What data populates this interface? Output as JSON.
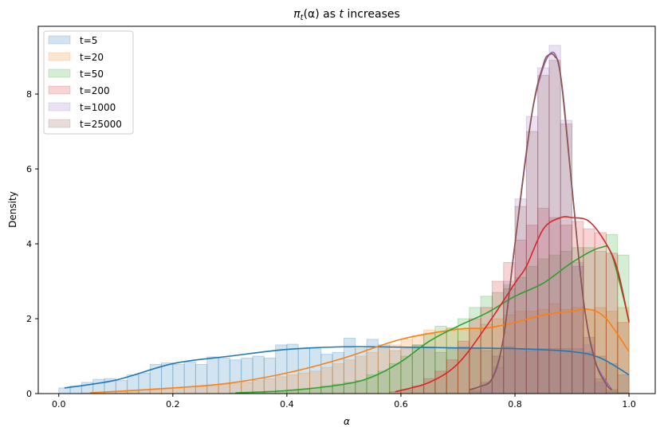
{
  "chart_data": {
    "type": "histogram+kde",
    "title": {
      "pi": "π",
      "sub": "t",
      "mid": "(α) as ",
      "t": "t",
      "end": " increases"
    },
    "xlabel": "α",
    "ylabel": "Density",
    "xlim": [
      -0.036,
      1.046
    ],
    "ylim": [
      0,
      9.81
    ],
    "xticks": [
      "0.0",
      "0.2",
      "0.4",
      "0.6",
      "0.8",
      "1.0"
    ],
    "yticks": [
      "0",
      "2",
      "4",
      "6",
      "8"
    ],
    "grid": false,
    "legend_position": "top-left",
    "bin_width": 0.02,
    "series": [
      {
        "name": "t=5",
        "color": "#1f77b4",
        "hist_start": 0.0,
        "hist": [
          0.15,
          0.2,
          0.3,
          0.38,
          0.4,
          0.35,
          0.5,
          0.55,
          0.78,
          0.82,
          0.78,
          0.85,
          0.78,
          0.98,
          0.95,
          0.9,
          0.95,
          1.0,
          0.95,
          1.3,
          1.32,
          1.2,
          1.2,
          1.05,
          1.1,
          1.48,
          1.2,
          1.45,
          1.3,
          1.15,
          1.2,
          1.3,
          1.25,
          1.1,
          1.2,
          1.25,
          1.2,
          1.15,
          1.2,
          1.25,
          1.2,
          1.15,
          1.2,
          1.2,
          1.2,
          1.2,
          1.1,
          1.0,
          0.8,
          0.5
        ],
        "kde": [
          [
            0.01,
            0.15
          ],
          [
            0.1,
            0.36
          ],
          [
            0.2,
            0.8
          ],
          [
            0.3,
            1.0
          ],
          [
            0.4,
            1.18
          ],
          [
            0.5,
            1.25
          ],
          [
            0.6,
            1.24
          ],
          [
            0.7,
            1.22
          ],
          [
            0.8,
            1.2
          ],
          [
            0.9,
            1.12
          ],
          [
            0.95,
            0.95
          ],
          [
            1.0,
            0.5
          ]
        ]
      },
      {
        "name": "t=20",
        "color": "#ff7f0e",
        "hist_start": 0.04,
        "hist": [
          0.02,
          0.03,
          0.05,
          0.05,
          0.08,
          0.1,
          0.1,
          0.12,
          0.15,
          0.18,
          0.2,
          0.2,
          0.25,
          0.28,
          0.3,
          0.35,
          0.4,
          0.45,
          0.5,
          0.55,
          0.6,
          0.7,
          0.8,
          0.9,
          1.0,
          1.1,
          1.2,
          1.3,
          1.45,
          1.55,
          1.7,
          1.65,
          1.75,
          1.7,
          1.75,
          1.85,
          2.0,
          2.1,
          2.2,
          2.2,
          2.25,
          2.4,
          2.25,
          2.3,
          2.25,
          2.3,
          2.2,
          2.3
        ],
        "kde": [
          [
            0.055,
            0.02
          ],
          [
            0.2,
            0.15
          ],
          [
            0.3,
            0.28
          ],
          [
            0.4,
            0.55
          ],
          [
            0.5,
            0.95
          ],
          [
            0.6,
            1.45
          ],
          [
            0.7,
            1.72
          ],
          [
            0.75,
            1.75
          ],
          [
            0.8,
            1.9
          ],
          [
            0.85,
            2.1
          ],
          [
            0.9,
            2.2
          ],
          [
            0.93,
            2.25
          ],
          [
            0.96,
            2.0
          ],
          [
            1.0,
            1.12
          ]
        ]
      },
      {
        "name": "t=50",
        "color": "#2ca02c",
        "hist_start": 0.3,
        "hist": [
          0.02,
          0.03,
          0.05,
          0.06,
          0.08,
          0.1,
          0.12,
          0.15,
          0.2,
          0.25,
          0.3,
          0.35,
          0.5,
          0.6,
          0.8,
          1.0,
          1.3,
          1.6,
          1.8,
          1.75,
          2.0,
          2.3,
          2.6,
          2.7,
          2.9,
          3.1,
          3.4,
          3.6,
          3.7,
          3.8,
          3.9,
          3.9,
          3.8,
          4.25,
          3.7
        ],
        "kde": [
          [
            0.31,
            0.02
          ],
          [
            0.4,
            0.08
          ],
          [
            0.5,
            0.25
          ],
          [
            0.55,
            0.45
          ],
          [
            0.6,
            0.85
          ],
          [
            0.65,
            1.4
          ],
          [
            0.7,
            1.8
          ],
          [
            0.75,
            2.15
          ],
          [
            0.8,
            2.6
          ],
          [
            0.85,
            2.95
          ],
          [
            0.9,
            3.5
          ],
          [
            0.95,
            3.9
          ],
          [
            0.97,
            3.7
          ],
          [
            1.0,
            1.95
          ]
        ]
      },
      {
        "name": "t=200",
        "color": "#d62728",
        "hist_start": 0.58,
        "hist": [
          0.05,
          0.1,
          0.2,
          0.4,
          0.6,
          0.9,
          1.4,
          2.0,
          2.3,
          3.0,
          3.5,
          4.1,
          4.5,
          4.95,
          4.7,
          4.5,
          4.6,
          4.4,
          4.3,
          3.75,
          1.9
        ],
        "kde": [
          [
            0.59,
            0.05
          ],
          [
            0.65,
            0.3
          ],
          [
            0.7,
            0.8
          ],
          [
            0.75,
            1.8
          ],
          [
            0.8,
            2.95
          ],
          [
            0.82,
            3.4
          ],
          [
            0.85,
            4.4
          ],
          [
            0.88,
            4.7
          ],
          [
            0.9,
            4.7
          ],
          [
            0.93,
            4.6
          ],
          [
            0.96,
            4.0
          ],
          [
            0.98,
            3.3
          ],
          [
            1.0,
            1.9
          ]
        ]
      },
      {
        "name": "t=1000",
        "color": "#9467bd",
        "hist_start": 0.72,
        "hist": [
          0.05,
          0.2,
          0.7,
          3.0,
          5.2,
          7.4,
          8.7,
          9.3,
          7.3,
          3.5,
          1.3,
          0.3,
          0.05,
          0.02
        ],
        "kde": [
          [
            0.72,
            0.1
          ],
          [
            0.76,
            0.4
          ],
          [
            0.78,
            1.5
          ],
          [
            0.8,
            4.0
          ],
          [
            0.83,
            7.5
          ],
          [
            0.86,
            9.05
          ],
          [
            0.88,
            8.5
          ],
          [
            0.9,
            5.5
          ],
          [
            0.92,
            2.5
          ],
          [
            0.94,
            0.9
          ],
          [
            0.97,
            0.1
          ]
        ]
      },
      {
        "name": "t=25000",
        "color": "#8c564b",
        "hist_start": 0.72,
        "hist": [
          0.1,
          0.3,
          1.0,
          2.8,
          5.0,
          7.0,
          8.5,
          8.9,
          7.2,
          3.4,
          1.5,
          0.4,
          0.1,
          0.02
        ],
        "kde": [
          [
            0.72,
            0.1
          ],
          [
            0.74,
            0.2
          ],
          [
            0.76,
            0.4
          ],
          [
            0.78,
            1.5
          ],
          [
            0.8,
            4.0
          ],
          [
            0.83,
            7.5
          ],
          [
            0.85,
            8.8
          ],
          [
            0.86,
            9.05
          ],
          [
            0.87,
            9.0
          ],
          [
            0.88,
            8.5
          ],
          [
            0.9,
            5.5
          ],
          [
            0.92,
            2.5
          ],
          [
            0.94,
            0.9
          ],
          [
            0.96,
            0.25
          ],
          [
            0.97,
            0.1
          ]
        ]
      }
    ]
  }
}
